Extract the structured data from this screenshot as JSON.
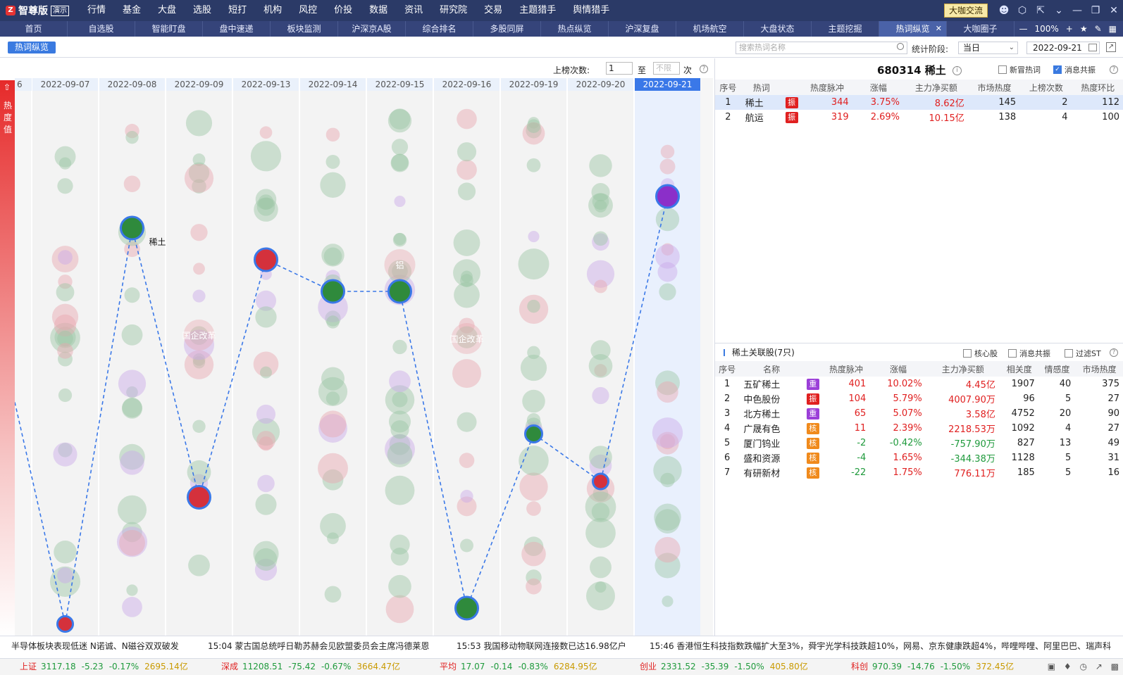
{
  "app": {
    "logo_mark": "Z",
    "name": "智尊版",
    "badge": "演示",
    "exchange_btn": "大咖交流"
  },
  "menu": [
    "行情",
    "基金",
    "大盘",
    "选股",
    "短打",
    "机构",
    "风控",
    "价投",
    "数据",
    "资讯",
    "研究院",
    "交易",
    "主题猎手",
    "舆情猎手"
  ],
  "tabs": [
    "首页",
    "自选股",
    "智能盯盘",
    "盘中速递",
    "板块监测",
    "沪深京A股",
    "综合排名",
    "多股同屏",
    "热点纵览",
    "沪深复盘",
    "机场航空",
    "大盘状态",
    "主题挖掘",
    "热词纵览",
    "大咖圈子"
  ],
  "active_tab_index": 13,
  "zoom": "100%",
  "toolbar": {
    "mode_btn": "热词纵览",
    "search_placeholder": "搜索热词名称",
    "stat_label": "统计阶段:",
    "stat_value": "当日",
    "date": "2022-09-21"
  },
  "filter": {
    "label": "上榜次数:",
    "from": "1",
    "to_label": "至",
    "to_placeholder": "不限",
    "unit": "次"
  },
  "heat_label": "热度值",
  "dates": [
    "2022-09-07",
    "2022-09-08",
    "2022-09-09",
    "2022-09-13",
    "2022-09-14",
    "2022-09-15",
    "2022-09-16",
    "2022-09-19",
    "2022-09-20",
    "2022-09-21"
  ],
  "first_date_fragment": "6",
  "highlight_label": "稀土",
  "bubble_labels": {
    "d2": "国企改革",
    "d5": "铝",
    "d6": "国企改革"
  },
  "chart_data": {
    "type": "scatter",
    "highlight_series": {
      "name": "稀土",
      "rank": [
        28,
        3,
        20,
        5,
        7,
        7,
        27,
        16,
        19,
        1
      ]
    },
    "colors": {
      "red": "#d4313c",
      "green": "#2f8a3c",
      "purple": "#8b2fc9",
      "line": "#3a78e8"
    }
  },
  "stock": {
    "code": "680314",
    "name": "稀土",
    "cb_new": "新冒热词",
    "cb_news": "消息共振"
  },
  "hot_table": {
    "headers": [
      "序号",
      "热词",
      "",
      "热度脉冲",
      "涨幅",
      "主力净买额",
      "市场热度",
      "上榜次数",
      "热度环比"
    ],
    "rows": [
      {
        "no": "1",
        "name": "稀土",
        "tag": "振",
        "pulse": "344",
        "pct": "3.75%",
        "net": "8.62亿",
        "heat": "145",
        "count": "2",
        "ratio": "112"
      },
      {
        "no": "2",
        "name": "航运",
        "tag": "振",
        "pulse": "319",
        "pct": "2.69%",
        "net": "10.15亿",
        "heat": "138",
        "count": "4",
        "ratio": "100"
      }
    ]
  },
  "related": {
    "title": "稀土关联股(7只)",
    "cb_core": "核心股",
    "cb_news": "消息共振",
    "cb_st": "过滤ST",
    "headers": [
      "序号",
      "名称",
      "",
      "热度脉冲",
      "涨幅",
      "主力净买额",
      "相关度",
      "情感度",
      "市场热度"
    ],
    "rows": [
      {
        "no": "1",
        "name": "五矿稀土",
        "tag": "重",
        "tagc": "#9b3fd8",
        "pulse": "401",
        "pct": "10.02%",
        "net": "4.45亿",
        "rel": "1907",
        "emo": "40",
        "heat": "375"
      },
      {
        "no": "2",
        "name": "中色股份",
        "tag": "振",
        "tagc": "#e02020",
        "pulse": "104",
        "pct": "5.79%",
        "net": "4007.90万",
        "rel": "96",
        "emo": "5",
        "heat": "27"
      },
      {
        "no": "3",
        "name": "北方稀土",
        "tag": "重",
        "tagc": "#9b3fd8",
        "pulse": "65",
        "pct": "5.07%",
        "net": "3.58亿",
        "rel": "4752",
        "emo": "20",
        "heat": "90"
      },
      {
        "no": "4",
        "name": "广晟有色",
        "tag": "核",
        "tagc": "#f08a1c",
        "pulse": "11",
        "pct": "2.39%",
        "net": "2218.53万",
        "rel": "1092",
        "emo": "4",
        "heat": "27"
      },
      {
        "no": "5",
        "name": "厦门钨业",
        "tag": "核",
        "tagc": "#f08a1c",
        "pulse": "-2",
        "pct": "-0.42%",
        "net": "-757.90万",
        "rel": "827",
        "emo": "13",
        "heat": "49"
      },
      {
        "no": "6",
        "name": "盛和资源",
        "tag": "核",
        "tagc": "#f08a1c",
        "pulse": "-4",
        "pct": "1.65%",
        "net": "-344.38万",
        "rel": "1128",
        "emo": "5",
        "heat": "31"
      },
      {
        "no": "7",
        "name": "有研新材",
        "tag": "核",
        "tagc": "#f08a1c",
        "pulse": "-22",
        "pct": "1.75%",
        "net": "776.11万",
        "rel": "185",
        "emo": "5",
        "heat": "16"
      }
    ]
  },
  "news": [
    "半导体板块表现低迷 N诺诚、N磁谷双双破发",
    "15:04 蒙古国总统呼日勒苏赫会见欧盟委员会主席冯德莱恩",
    "15:53 我国移动物联网连接数已达16.98亿户",
    "15:46 香港恒生科技指数跌幅扩大至3%，舜宇光学科技跌超10%，网易、京东健康跌超4%，哔哩哔哩、阿里巴巴、瑞声科"
  ],
  "indices": [
    {
      "name": "上证",
      "val": "3117.18",
      "chg": "-5.23",
      "pct": "-0.17%",
      "amt": "2695.14亿"
    },
    {
      "name": "深成",
      "val": "11208.51",
      "chg": "-75.42",
      "pct": "-0.67%",
      "amt": "3664.47亿"
    },
    {
      "name": "平均",
      "val": "17.07",
      "chg": "-0.14",
      "pct": "-0.83%",
      "amt": "6284.95亿"
    },
    {
      "name": "创业",
      "val": "2331.52",
      "chg": "-35.39",
      "pct": "-1.50%",
      "amt": "405.80亿"
    },
    {
      "name": "科创",
      "val": "970.39",
      "chg": "-14.76",
      "pct": "-1.50%",
      "amt": "372.45亿"
    }
  ]
}
